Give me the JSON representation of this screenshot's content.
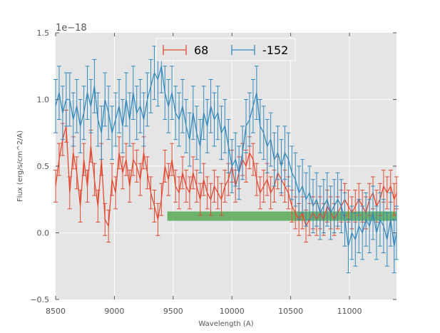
{
  "chart_data": {
    "type": "line",
    "style": "errorbar",
    "title": "",
    "xlabel": "Wavelength (A)",
    "ylabel": "Flux (erg/s/cm^2/A)",
    "y_offset_label": "1e−18",
    "xlim": [
      8500,
      11400
    ],
    "ylim": [
      -0.5,
      1.5
    ],
    "xticks": [
      8500,
      9000,
      9500,
      10000,
      10500,
      11000
    ],
    "xtick_labels": [
      "8500",
      "9000",
      "9500",
      "10000",
      "10500",
      "11000"
    ],
    "yticks": [
      -0.5,
      0.0,
      0.5,
      1.0,
      1.5
    ],
    "ytick_labels": [
      "−0.5",
      "0.0",
      "0.5",
      "1.0",
      "1.5"
    ],
    "grid": true,
    "legend_position": "top-center",
    "series": [
      {
        "name": "68",
        "color": "#E24A33",
        "points": [
          [
            8500,
            0.35
          ],
          [
            8530,
            0.55
          ],
          [
            8560,
            0.7
          ],
          [
            8590,
            0.8
          ],
          [
            8620,
            0.3
          ],
          [
            8650,
            0.6
          ],
          [
            8680,
            0.45
          ],
          [
            8710,
            0.2
          ],
          [
            8740,
            0.55
          ],
          [
            8770,
            0.35
          ],
          [
            8800,
            0.65
          ],
          [
            8830,
            0.4
          ],
          [
            8860,
            0.2
          ],
          [
            8890,
            0.55
          ],
          [
            8920,
            0.1
          ],
          [
            8950,
            0.05
          ],
          [
            8980,
            0.4
          ],
          [
            9010,
            0.3
          ],
          [
            9040,
            0.6
          ],
          [
            9070,
            0.45
          ],
          [
            9100,
            0.55
          ],
          [
            9130,
            0.35
          ],
          [
            9160,
            0.55
          ],
          [
            9190,
            0.5
          ],
          [
            9220,
            0.4
          ],
          [
            9250,
            0.6
          ],
          [
            9280,
            0.45
          ],
          [
            9310,
            0.3
          ],
          [
            9340,
            0.2
          ],
          [
            9370,
            0.1
          ],
          [
            9400,
            0.25
          ],
          [
            9430,
            0.5
          ],
          [
            9460,
            0.4
          ],
          [
            9490,
            0.55
          ],
          [
            9520,
            0.35
          ],
          [
            9550,
            0.3
          ],
          [
            9580,
            0.45
          ],
          [
            9610,
            0.35
          ],
          [
            9640,
            0.3
          ],
          [
            9670,
            0.45
          ],
          [
            9700,
            0.35
          ],
          [
            9730,
            0.25
          ],
          [
            9760,
            0.4
          ],
          [
            9790,
            0.3
          ],
          [
            9820,
            0.25
          ],
          [
            9850,
            0.35
          ],
          [
            9880,
            0.3
          ],
          [
            9910,
            0.25
          ],
          [
            9940,
            0.35
          ],
          [
            9970,
            0.4
          ],
          [
            10000,
            0.5
          ],
          [
            10030,
            0.35
          ],
          [
            10060,
            0.45
          ],
          [
            10090,
            0.55
          ],
          [
            10120,
            0.5
          ],
          [
            10150,
            0.6
          ],
          [
            10180,
            0.55
          ],
          [
            10210,
            0.4
          ],
          [
            10240,
            0.3
          ],
          [
            10270,
            0.35
          ],
          [
            10300,
            0.4
          ],
          [
            10330,
            0.3
          ],
          [
            10360,
            0.35
          ],
          [
            10390,
            0.45
          ],
          [
            10420,
            0.4
          ],
          [
            10450,
            0.35
          ],
          [
            10480,
            0.3
          ],
          [
            10510,
            0.2
          ],
          [
            10540,
            0.15
          ],
          [
            10570,
            0.1
          ],
          [
            10600,
            0.15
          ],
          [
            10630,
            0.05
          ],
          [
            10660,
            0.1
          ],
          [
            10690,
            0.15
          ],
          [
            10720,
            0.1
          ],
          [
            10750,
            0.15
          ],
          [
            10780,
            0.1
          ],
          [
            10810,
            0.2
          ],
          [
            10840,
            0.15
          ],
          [
            10870,
            0.1
          ],
          [
            10900,
            0.15
          ],
          [
            10930,
            0.2
          ],
          [
            10960,
            0.25
          ],
          [
            10990,
            0.2
          ],
          [
            11020,
            0.15
          ],
          [
            11050,
            0.2
          ],
          [
            11080,
            0.25
          ],
          [
            11110,
            0.2
          ],
          [
            11140,
            0.15
          ],
          [
            11170,
            0.25
          ],
          [
            11200,
            0.3
          ],
          [
            11230,
            0.2
          ],
          [
            11260,
            0.25
          ],
          [
            11290,
            0.35
          ],
          [
            11320,
            0.3
          ],
          [
            11350,
            0.35
          ],
          [
            11380,
            0.25
          ],
          [
            11400,
            0.3
          ]
        ],
        "error": 0.12
      },
      {
        "name": "-152",
        "color": "#348ABD",
        "points": [
          [
            8500,
            0.95
          ],
          [
            8530,
            1.05
          ],
          [
            8560,
            0.9
          ],
          [
            8590,
            1.0
          ],
          [
            8620,
            1.0
          ],
          [
            8650,
            0.85
          ],
          [
            8680,
            0.95
          ],
          [
            8710,
            0.8
          ],
          [
            8740,
            0.9
          ],
          [
            8770,
            1.05
          ],
          [
            8800,
            0.95
          ],
          [
            8830,
            1.1
          ],
          [
            8860,
            0.85
          ],
          [
            8890,
            0.75
          ],
          [
            8920,
            1.0
          ],
          [
            8950,
            0.9
          ],
          [
            8980,
            0.75
          ],
          [
            9010,
            0.85
          ],
          [
            9040,
            0.95
          ],
          [
            9070,
            0.8
          ],
          [
            9100,
            1.0
          ],
          [
            9130,
            0.85
          ],
          [
            9160,
            1.05
          ],
          [
            9190,
            0.9
          ],
          [
            9220,
            0.95
          ],
          [
            9250,
            0.85
          ],
          [
            9280,
            1.0
          ],
          [
            9310,
            1.1
          ],
          [
            9340,
            1.2
          ],
          [
            9370,
            1.15
          ],
          [
            9400,
            1.25
          ],
          [
            9430,
            1.05
          ],
          [
            9460,
            0.95
          ],
          [
            9490,
            1.05
          ],
          [
            9520,
            0.9
          ],
          [
            9550,
            0.85
          ],
          [
            9580,
            0.95
          ],
          [
            9610,
            0.8
          ],
          [
            9640,
            0.7
          ],
          [
            9670,
            0.9
          ],
          [
            9700,
            0.75
          ],
          [
            9730,
            0.65
          ],
          [
            9760,
            0.9
          ],
          [
            9790,
            0.8
          ],
          [
            9820,
            0.95
          ],
          [
            9850,
            0.85
          ],
          [
            9880,
            0.9
          ],
          [
            9910,
            0.75
          ],
          [
            9940,
            0.8
          ],
          [
            9970,
            0.65
          ],
          [
            10000,
            0.5
          ],
          [
            10030,
            0.55
          ],
          [
            10060,
            0.45
          ],
          [
            10090,
            0.6
          ],
          [
            10120,
            0.8
          ],
          [
            10150,
            0.85
          ],
          [
            10180,
            0.95
          ],
          [
            10210,
            1.05
          ],
          [
            10240,
            0.8
          ],
          [
            10270,
            0.75
          ],
          [
            10300,
            0.65
          ],
          [
            10330,
            0.7
          ],
          [
            10360,
            0.55
          ],
          [
            10390,
            0.6
          ],
          [
            10420,
            0.5
          ],
          [
            10450,
            0.6
          ],
          [
            10480,
            0.55
          ],
          [
            10510,
            0.45
          ],
          [
            10540,
            0.4
          ],
          [
            10570,
            0.3
          ],
          [
            10600,
            0.35
          ],
          [
            10630,
            0.25
          ],
          [
            10660,
            0.3
          ],
          [
            10690,
            0.2
          ],
          [
            10720,
            0.25
          ],
          [
            10750,
            0.15
          ],
          [
            10780,
            0.2
          ],
          [
            10810,
            0.25
          ],
          [
            10840,
            0.15
          ],
          [
            10870,
            0.2
          ],
          [
            10900,
            0.25
          ],
          [
            10930,
            0.2
          ],
          [
            10960,
            0.1
          ],
          [
            10990,
            -0.1
          ],
          [
            11020,
            0.0
          ],
          [
            11050,
            -0.05
          ],
          [
            11080,
            0.05
          ],
          [
            11110,
            0.0
          ],
          [
            11140,
            0.1
          ],
          [
            11170,
            0.05
          ],
          [
            11200,
            0.15
          ],
          [
            11230,
            0.0
          ],
          [
            11260,
            0.1
          ],
          [
            11290,
            0.05
          ],
          [
            11320,
            -0.05
          ],
          [
            11350,
            0.1
          ],
          [
            11380,
            -0.1
          ],
          [
            11400,
            0.0
          ]
        ],
        "error": 0.2
      }
    ],
    "band": {
      "x_start": 9450,
      "x_end": 11400,
      "y_low": 0.09,
      "y_high": 0.16,
      "color": "#4CA64C"
    }
  }
}
